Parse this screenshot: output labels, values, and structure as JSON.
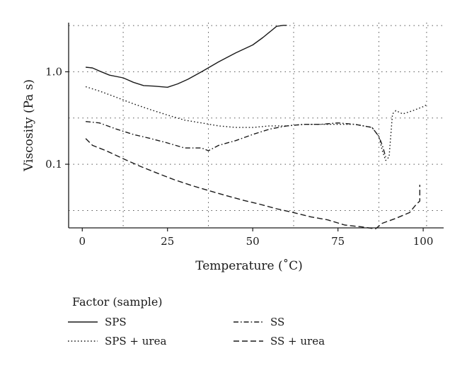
{
  "chart_data": {
    "type": "line",
    "title": "",
    "xlabel": "Temperature (˚C)",
    "ylabel": "Viscosity (Pa s)",
    "xlim": [
      -4,
      106
    ],
    "ylim": [
      0.0205,
      3.4
    ],
    "y_scale": "log",
    "x_ticks": [
      0,
      25,
      50,
      75,
      100
    ],
    "x_tick_labels": [
      "0",
      "25",
      "50",
      "75",
      "100"
    ],
    "y_ticks": [
      1.0,
      0.1
    ],
    "y_tick_labels": [
      "1.0",
      "0.1"
    ],
    "grid": "dotted",
    "grid_x": [
      12,
      37,
      62,
      87,
      101
    ],
    "grid_y": [
      3.16,
      1.0,
      0.316,
      0.1,
      0.0316
    ],
    "legend": {
      "title": "Factor (sample)",
      "placement": "bottom"
    },
    "series": [
      {
        "name": "SPS",
        "style": "solid",
        "x": [
          1,
          3,
          5,
          8,
          12,
          15,
          18,
          21,
          25,
          28,
          31,
          35,
          40,
          45,
          50,
          53,
          55,
          57,
          59,
          60
        ],
        "y": [
          1.12,
          1.1,
          1.02,
          0.92,
          0.86,
          0.77,
          0.71,
          0.7,
          0.68,
          0.74,
          0.83,
          1.0,
          1.28,
          1.6,
          1.95,
          2.35,
          2.7,
          3.1,
          3.18,
          3.18
        ]
      },
      {
        "name": "SPS + urea",
        "style": "dotted",
        "x": [
          1,
          5,
          10,
          15,
          20,
          25,
          30,
          35,
          40,
          45,
          50,
          55,
          60,
          65,
          70,
          75,
          80,
          85,
          87,
          88,
          89,
          90,
          91,
          92,
          94,
          97,
          100,
          101
        ],
        "y": [
          0.69,
          0.62,
          0.53,
          0.45,
          0.39,
          0.34,
          0.3,
          0.28,
          0.26,
          0.25,
          0.25,
          0.26,
          0.26,
          0.27,
          0.27,
          0.27,
          0.27,
          0.25,
          0.2,
          0.14,
          0.11,
          0.12,
          0.35,
          0.38,
          0.35,
          0.38,
          0.42,
          0.44
        ]
      },
      {
        "name": "SS",
        "style": "dashdot",
        "x": [
          1,
          5,
          10,
          15,
          20,
          25,
          30,
          35,
          37,
          40,
          45,
          50,
          55,
          60,
          65,
          70,
          75,
          80,
          85,
          87,
          88,
          89
        ],
        "y": [
          0.29,
          0.28,
          0.24,
          0.21,
          0.19,
          0.17,
          0.15,
          0.15,
          0.14,
          0.16,
          0.18,
          0.21,
          0.24,
          0.26,
          0.27,
          0.27,
          0.28,
          0.27,
          0.25,
          0.2,
          0.16,
          0.12
        ]
      },
      {
        "name": "SS + urea",
        "style": "dashed",
        "x": [
          1,
          3,
          7,
          12,
          17,
          22,
          27,
          32,
          37,
          42,
          47,
          52,
          57,
          62,
          67,
          72,
          77,
          82,
          86,
          88,
          92,
          96,
          98,
          99,
          99
        ],
        "y": [
          0.19,
          0.16,
          0.14,
          0.115,
          0.095,
          0.08,
          0.068,
          0.059,
          0.052,
          0.046,
          0.041,
          0.037,
          0.033,
          0.03,
          0.027,
          0.025,
          0.022,
          0.021,
          0.02,
          0.023,
          0.026,
          0.03,
          0.037,
          0.04,
          0.06
        ]
      }
    ]
  }
}
